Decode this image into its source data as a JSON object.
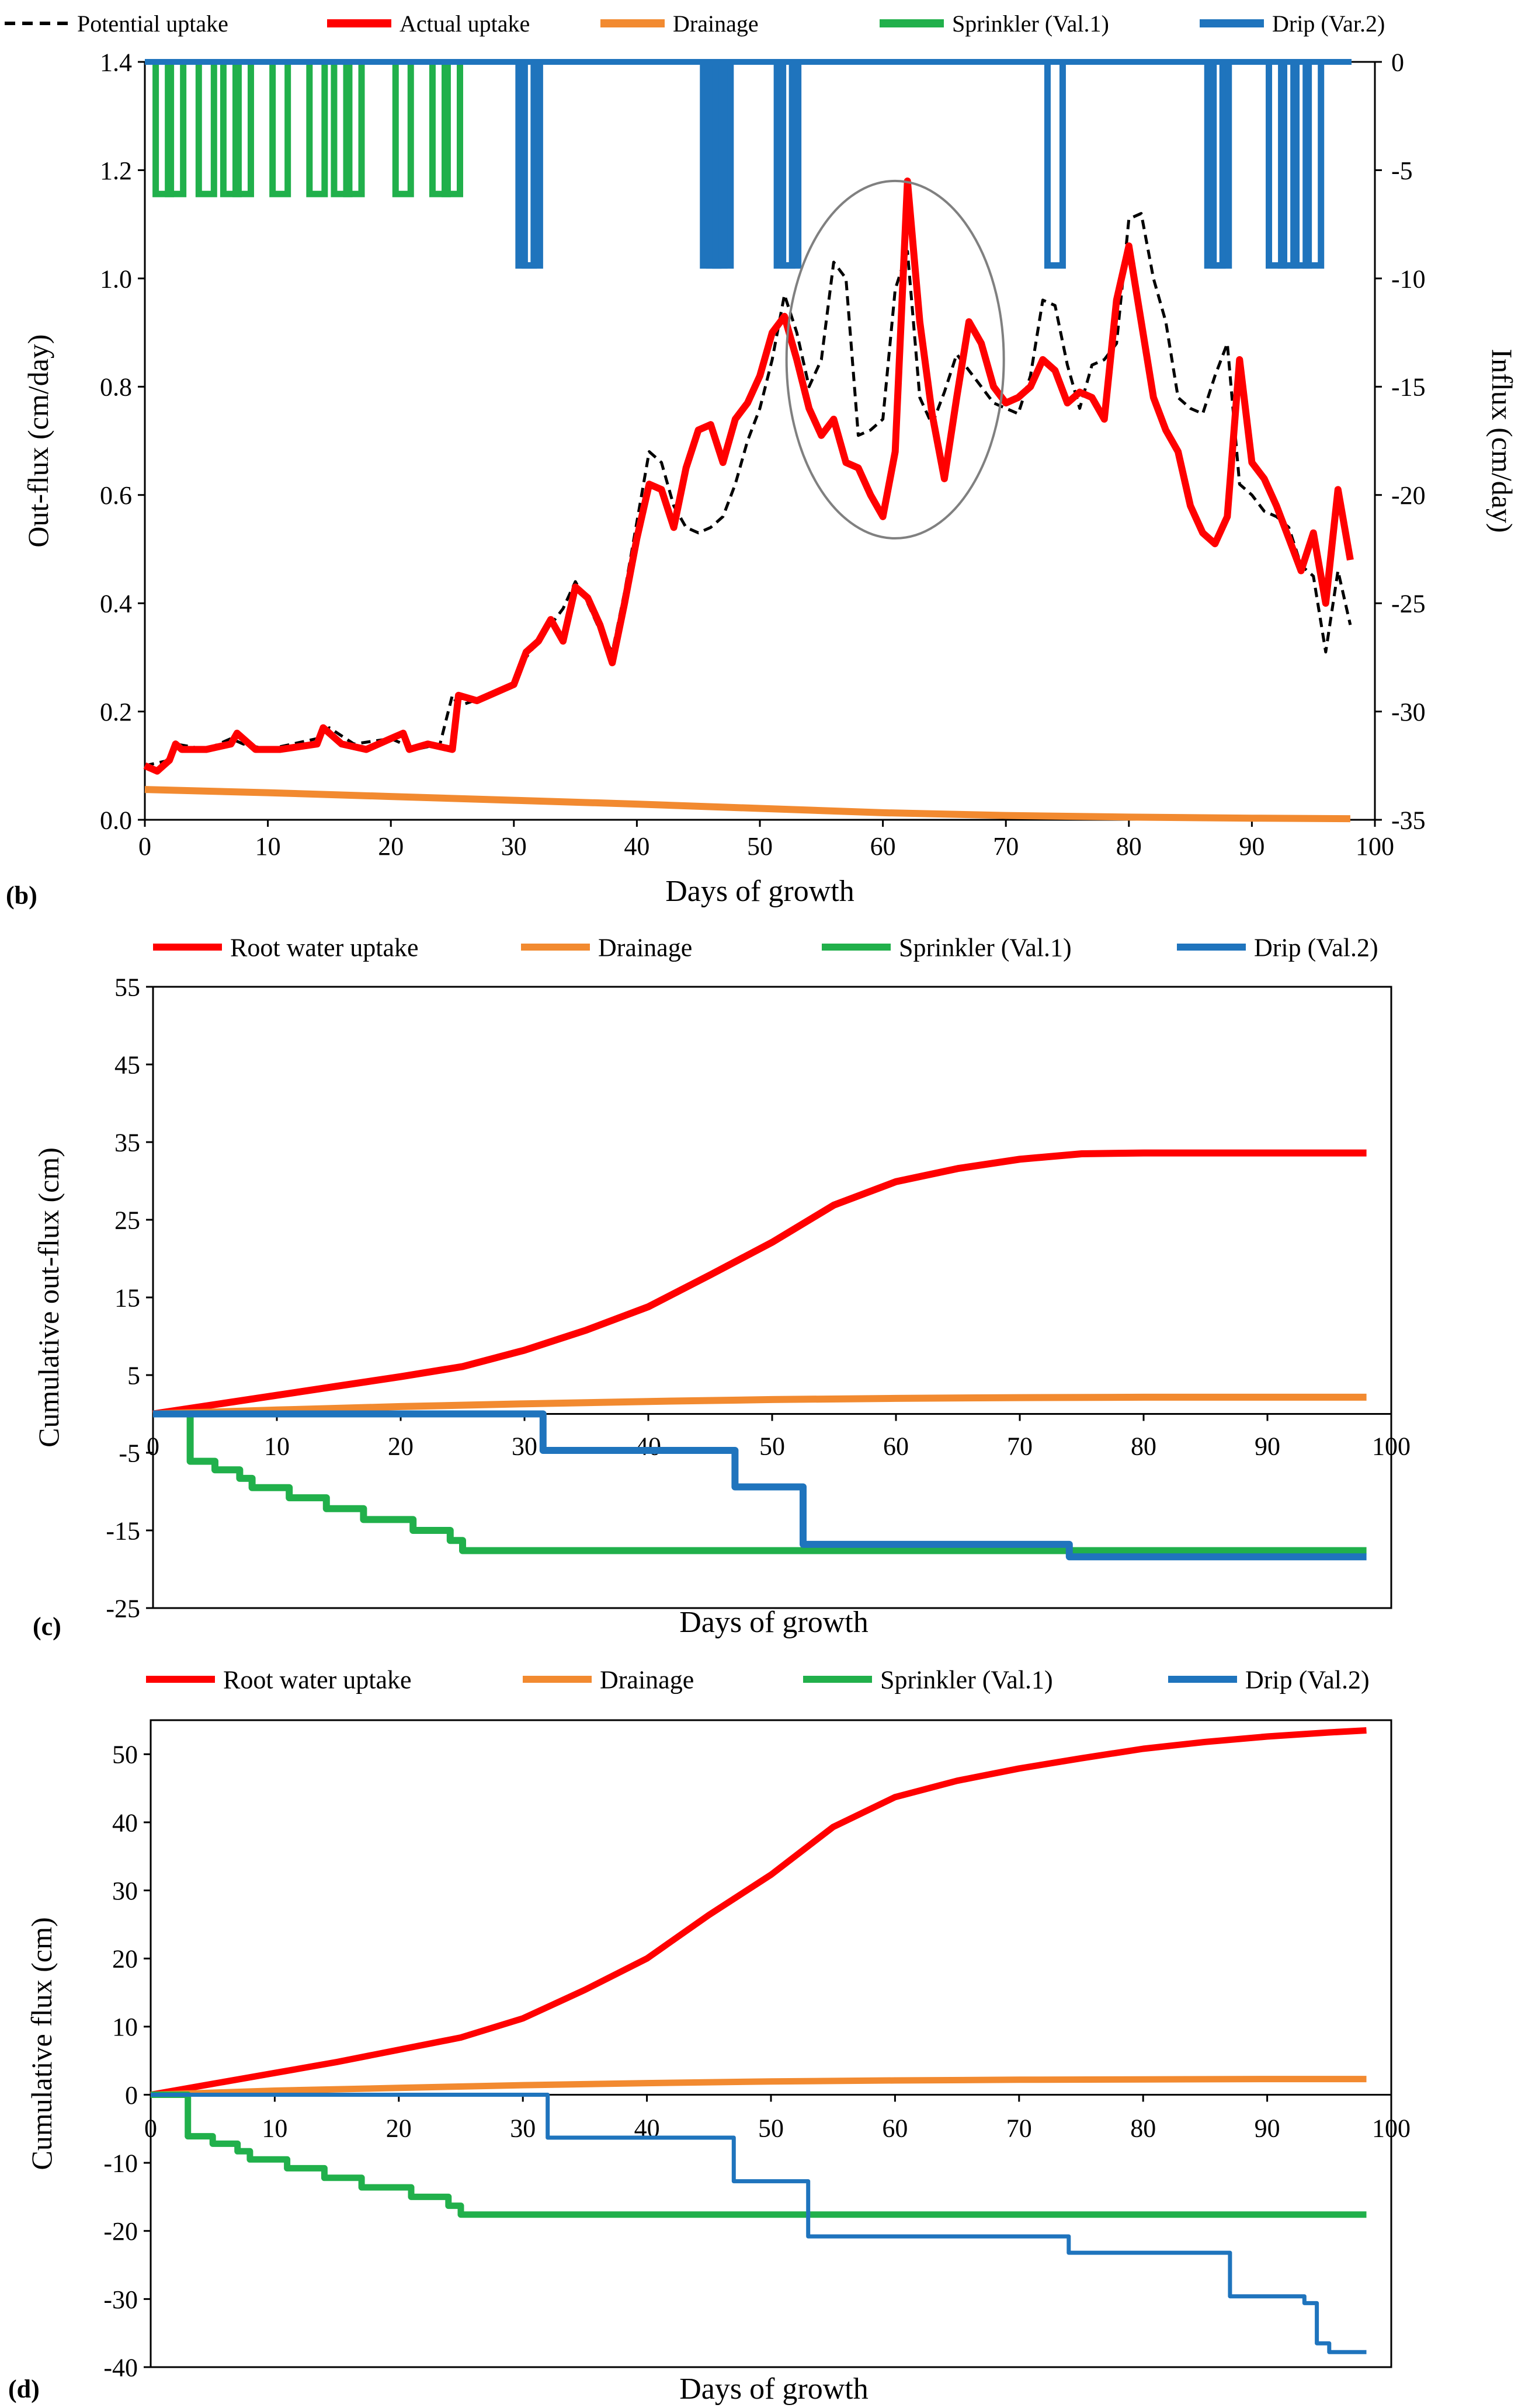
{
  "colors": {
    "potential": "#000000",
    "actual": "#ff0000",
    "drainage": "#f28a30",
    "sprinkler": "#21b04b",
    "drip": "#1f74bd",
    "axis": "#000000",
    "ellipse": "#808080"
  },
  "chart_data": [
    {
      "type": "line",
      "panel_label": "(b)",
      "xlabel": "Days of growth",
      "ylabel": "Out-flux (cm/day)",
      "y2label": "Influx (cm/day)",
      "xlim": [
        0,
        100
      ],
      "ylim": [
        0,
        1.4
      ],
      "y2lim": [
        -35,
        0
      ],
      "xticks": [
        0,
        10,
        20,
        30,
        40,
        50,
        60,
        70,
        80,
        90,
        100
      ],
      "yticks": [
        0.0,
        0.2,
        0.4,
        0.6,
        0.8,
        1.0,
        1.2,
        1.4
      ],
      "ytick_labels": [
        "0.0",
        "0.2",
        "0.4",
        "0.6",
        "0.8",
        "1.0",
        "1.2",
        "1.4"
      ],
      "y2ticks": [
        0,
        -5,
        -10,
        -15,
        -20,
        -25,
        -30,
        -35
      ],
      "legend": [
        {
          "key": "potential",
          "label": "Potential uptake"
        },
        {
          "key": "actual",
          "label": "Actual uptake"
        },
        {
          "key": "drainage",
          "label": "Drainage"
        },
        {
          "key": "sprinkler",
          "label": "Sprinkler (Val.1)"
        },
        {
          "key": "drip",
          "label": "Drip (Var.2)"
        }
      ],
      "annotation": "ellipse around days 52-69",
      "series": [
        {
          "name": "Potential uptake",
          "key": "potential",
          "style": "dashed",
          "axis": "y",
          "x": [
            0,
            2,
            2.5,
            5,
            7,
            8,
            10,
            14,
            15,
            17,
            20,
            22,
            24,
            25,
            25.5,
            28,
            30,
            31,
            32,
            33,
            34,
            35,
            36,
            37,
            38,
            39,
            40,
            41,
            42,
            43,
            44,
            45,
            46,
            47,
            48,
            49,
            50,
            51,
            52,
            53,
            54,
            55,
            56,
            57,
            58,
            59,
            60,
            61,
            62,
            63,
            64,
            65,
            66,
            67,
            68,
            69,
            70,
            71,
            72,
            73,
            74,
            75,
            76,
            77,
            78,
            79,
            80,
            81,
            82,
            83,
            84,
            85,
            86,
            87,
            88,
            89,
            90,
            91,
            92,
            93,
            94,
            95,
            96,
            97,
            98
          ],
          "y": [
            0.1,
            0.11,
            0.14,
            0.13,
            0.15,
            0.14,
            0.13,
            0.15,
            0.17,
            0.14,
            0.15,
            0.13,
            0.14,
            0.23,
            0.21,
            0.23,
            0.25,
            0.3,
            0.33,
            0.36,
            0.39,
            0.44,
            0.4,
            0.35,
            0.31,
            0.42,
            0.55,
            0.68,
            0.66,
            0.58,
            0.54,
            0.53,
            0.54,
            0.56,
            0.62,
            0.7,
            0.76,
            0.85,
            0.97,
            0.9,
            0.8,
            0.85,
            1.03,
            1.0,
            0.71,
            0.72,
            0.74,
            0.98,
            1.05,
            0.78,
            0.73,
            0.79,
            0.86,
            0.83,
            0.8,
            0.77,
            0.76,
            0.75,
            0.82,
            0.96,
            0.95,
            0.84,
            0.76,
            0.84,
            0.85,
            0.88,
            1.11,
            1.12,
            1.0,
            0.92,
            0.78,
            0.76,
            0.75,
            0.82,
            0.88,
            0.62,
            0.6,
            0.57,
            0.56,
            0.54,
            0.47,
            0.45,
            0.31,
            0.46,
            0.36
          ]
        },
        {
          "name": "Actual uptake",
          "key": "actual",
          "style": "solid",
          "axis": "y",
          "x": [
            0,
            1,
            2,
            2.5,
            3,
            5,
            7,
            7.5,
            9,
            11,
            14,
            14.5,
            16,
            18,
            20,
            21,
            21.5,
            23,
            25,
            25.5,
            27,
            28,
            29,
            30,
            31,
            32,
            33,
            34,
            35,
            36,
            37,
            38,
            39,
            40,
            41,
            42,
            43,
            44,
            45,
            46,
            47,
            48,
            49,
            50,
            51,
            52,
            53,
            54,
            55,
            56,
            57,
            58,
            59,
            60,
            61,
            62,
            63,
            64,
            65,
            66,
            67,
            68,
            69,
            70,
            71,
            72,
            73,
            74,
            75,
            76,
            77,
            78,
            79,
            80,
            81,
            82,
            83,
            84,
            85,
            86,
            87,
            88,
            89,
            90,
            91,
            92,
            93,
            94,
            95,
            96,
            97,
            98
          ],
          "y": [
            0.1,
            0.09,
            0.11,
            0.14,
            0.13,
            0.13,
            0.14,
            0.16,
            0.13,
            0.13,
            0.14,
            0.17,
            0.14,
            0.13,
            0.15,
            0.16,
            0.13,
            0.14,
            0.13,
            0.23,
            0.22,
            0.23,
            0.24,
            0.25,
            0.31,
            0.33,
            0.37,
            0.33,
            0.43,
            0.41,
            0.36,
            0.29,
            0.4,
            0.52,
            0.62,
            0.61,
            0.54,
            0.65,
            0.72,
            0.73,
            0.66,
            0.74,
            0.77,
            0.82,
            0.9,
            0.93,
            0.85,
            0.76,
            0.71,
            0.74,
            0.66,
            0.65,
            0.6,
            0.56,
            0.68,
            1.18,
            0.92,
            0.75,
            0.63,
            0.78,
            0.92,
            0.88,
            0.8,
            0.77,
            0.78,
            0.8,
            0.85,
            0.83,
            0.77,
            0.79,
            0.78,
            0.74,
            0.96,
            1.06,
            0.92,
            0.78,
            0.72,
            0.68,
            0.58,
            0.53,
            0.51,
            0.56,
            0.85,
            0.66,
            0.63,
            0.58,
            0.52,
            0.46,
            0.53,
            0.4,
            0.61,
            0.48
          ]
        },
        {
          "name": "Drainage",
          "key": "drainage",
          "style": "solid",
          "axis": "y",
          "x": [
            0,
            10,
            20,
            30,
            40,
            50,
            60,
            70,
            80,
            90,
            98
          ],
          "y": [
            0.056,
            0.05,
            0.043,
            0.036,
            0.029,
            0.021,
            0.013,
            0.008,
            0.005,
            0.003,
            0.002
          ]
        },
        {
          "name": "Sprinkler (Val.1)",
          "key": "sprinkler",
          "style": "pulses",
          "axis": "y2",
          "depth": -6.1,
          "days": [
            1.5,
            2.5,
            5,
            7,
            8,
            11,
            14,
            16,
            17,
            21,
            24,
            25
          ]
        },
        {
          "name": "Drip (Var.2)",
          "key": "drip",
          "style": "pulses",
          "axis": "y2",
          "depth": -9.4,
          "days": [
            31,
            31.5,
            46,
            46.5,
            47,
            52,
            52.5,
            74,
            87,
            87.5,
            92,
            93,
            94,
            95
          ]
        }
      ]
    },
    {
      "type": "line",
      "panel_label": "(c)",
      "xlabel": "Days of growth",
      "ylabel": "Cumulative  out-flux (cm)",
      "xlim": [
        0,
        100
      ],
      "ylim": [
        -25,
        55
      ],
      "xticks": [
        0,
        10,
        20,
        30,
        40,
        50,
        60,
        70,
        80,
        90,
        100
      ],
      "yticks": [
        -25,
        -15,
        -5,
        5,
        15,
        25,
        35,
        45,
        55
      ],
      "legend": [
        {
          "key": "actual",
          "label": "Root water uptake"
        },
        {
          "key": "drainage",
          "label": "Drainage"
        },
        {
          "key": "sprinkler",
          "label": "Sprinkler (Val.1)"
        },
        {
          "key": "drip",
          "label": "Drip (Val.2)"
        }
      ],
      "series": [
        {
          "name": "Root water uptake",
          "key": "actual",
          "style": "solid",
          "x": [
            0,
            5,
            10,
            15,
            20,
            25,
            30,
            35,
            40,
            45,
            50,
            55,
            60,
            65,
            70,
            75,
            80,
            90,
            98
          ],
          "y": [
            0,
            1.2,
            2.4,
            3.6,
            4.8,
            6.1,
            8.2,
            10.8,
            13.8,
            17.9,
            22.1,
            26.9,
            29.9,
            31.6,
            32.8,
            33.5,
            33.6,
            33.6,
            33.6
          ]
        },
        {
          "name": "Drainage",
          "key": "drainage",
          "style": "solid",
          "x": [
            0,
            10,
            20,
            30,
            40,
            50,
            60,
            70,
            80,
            90,
            98
          ],
          "y": [
            0,
            0.5,
            0.95,
            1.3,
            1.6,
            1.85,
            2.0,
            2.1,
            2.15,
            2.15,
            2.15
          ]
        },
        {
          "name": "Sprinkler (Val.1)",
          "key": "sprinkler",
          "style": "step",
          "x": [
            0,
            2,
            3,
            5,
            7,
            8,
            11,
            14,
            17,
            21,
            24,
            25,
            98
          ],
          "y": [
            0,
            0,
            -6.1,
            -7.2,
            -8.3,
            -9.5,
            -10.8,
            -12.2,
            -13.6,
            -15.0,
            -16.3,
            -17.6,
            -17.6
          ]
        },
        {
          "name": "Drip (Val.2)",
          "key": "drip",
          "style": "step",
          "x": [
            0,
            31,
            31.5,
            46,
            47,
            52,
            52.5,
            74,
            98
          ],
          "y": [
            0,
            0,
            -4.7,
            -4.7,
            -9.4,
            -9.4,
            -16.8,
            -18.4,
            -18.4
          ]
        }
      ]
    },
    {
      "type": "line",
      "panel_label": "(d)",
      "xlabel": "Days of growth",
      "ylabel": "Cumulative  flux (cm)",
      "xlim": [
        0,
        100
      ],
      "ylim": [
        -40,
        55
      ],
      "xticks": [
        0,
        10,
        20,
        30,
        40,
        50,
        60,
        70,
        80,
        90,
        100
      ],
      "yticks": [
        -40,
        -30,
        -20,
        -10,
        0,
        10,
        20,
        30,
        40,
        50
      ],
      "legend": [
        {
          "key": "actual",
          "label": "Root water uptake"
        },
        {
          "key": "drainage",
          "label": "Drainage"
        },
        {
          "key": "sprinkler",
          "label": "Sprinkler (Val.1)"
        },
        {
          "key": "drip",
          "label": "Drip (Val.2)"
        }
      ],
      "series": [
        {
          "name": "Root water uptake",
          "key": "actual",
          "style": "solid",
          "x": [
            0,
            5,
            10,
            15,
            20,
            25,
            30,
            35,
            40,
            45,
            50,
            55,
            60,
            65,
            70,
            75,
            80,
            85,
            90,
            95,
            98
          ],
          "y": [
            0,
            1.6,
            3.2,
            4.8,
            6.6,
            8.4,
            11.2,
            15.4,
            20.0,
            26.4,
            32.3,
            39.3,
            43.7,
            46.1,
            47.9,
            49.4,
            50.8,
            51.8,
            52.6,
            53.2,
            53.5
          ]
        },
        {
          "name": "Drainage",
          "key": "drainage",
          "style": "solid",
          "x": [
            0,
            10,
            20,
            30,
            40,
            50,
            60,
            70,
            80,
            90,
            98
          ],
          "y": [
            0,
            0.6,
            1.0,
            1.4,
            1.7,
            1.95,
            2.1,
            2.2,
            2.25,
            2.3,
            2.3
          ]
        },
        {
          "name": "Sprinkler (Val.1)",
          "key": "sprinkler",
          "style": "step",
          "x": [
            0,
            2,
            3,
            5,
            7,
            8,
            11,
            14,
            17,
            21,
            24,
            25,
            98
          ],
          "y": [
            0,
            0,
            -6.1,
            -7.2,
            -8.3,
            -9.5,
            -10.8,
            -12.2,
            -13.6,
            -15.0,
            -16.3,
            -17.6,
            -17.6
          ]
        },
        {
          "name": "Drip (Val.2)",
          "key": "drip",
          "style": "step",
          "x": [
            0,
            31,
            32,
            46,
            47,
            52,
            53,
            74,
            87,
            92,
            93,
            94,
            95,
            98
          ],
          "y": [
            0,
            0,
            -6.3,
            -6.3,
            -12.7,
            -12.7,
            -20.8,
            -23.2,
            -29.6,
            -29.6,
            -30.6,
            -36.5,
            -37.8,
            -37.8
          ]
        }
      ]
    }
  ]
}
